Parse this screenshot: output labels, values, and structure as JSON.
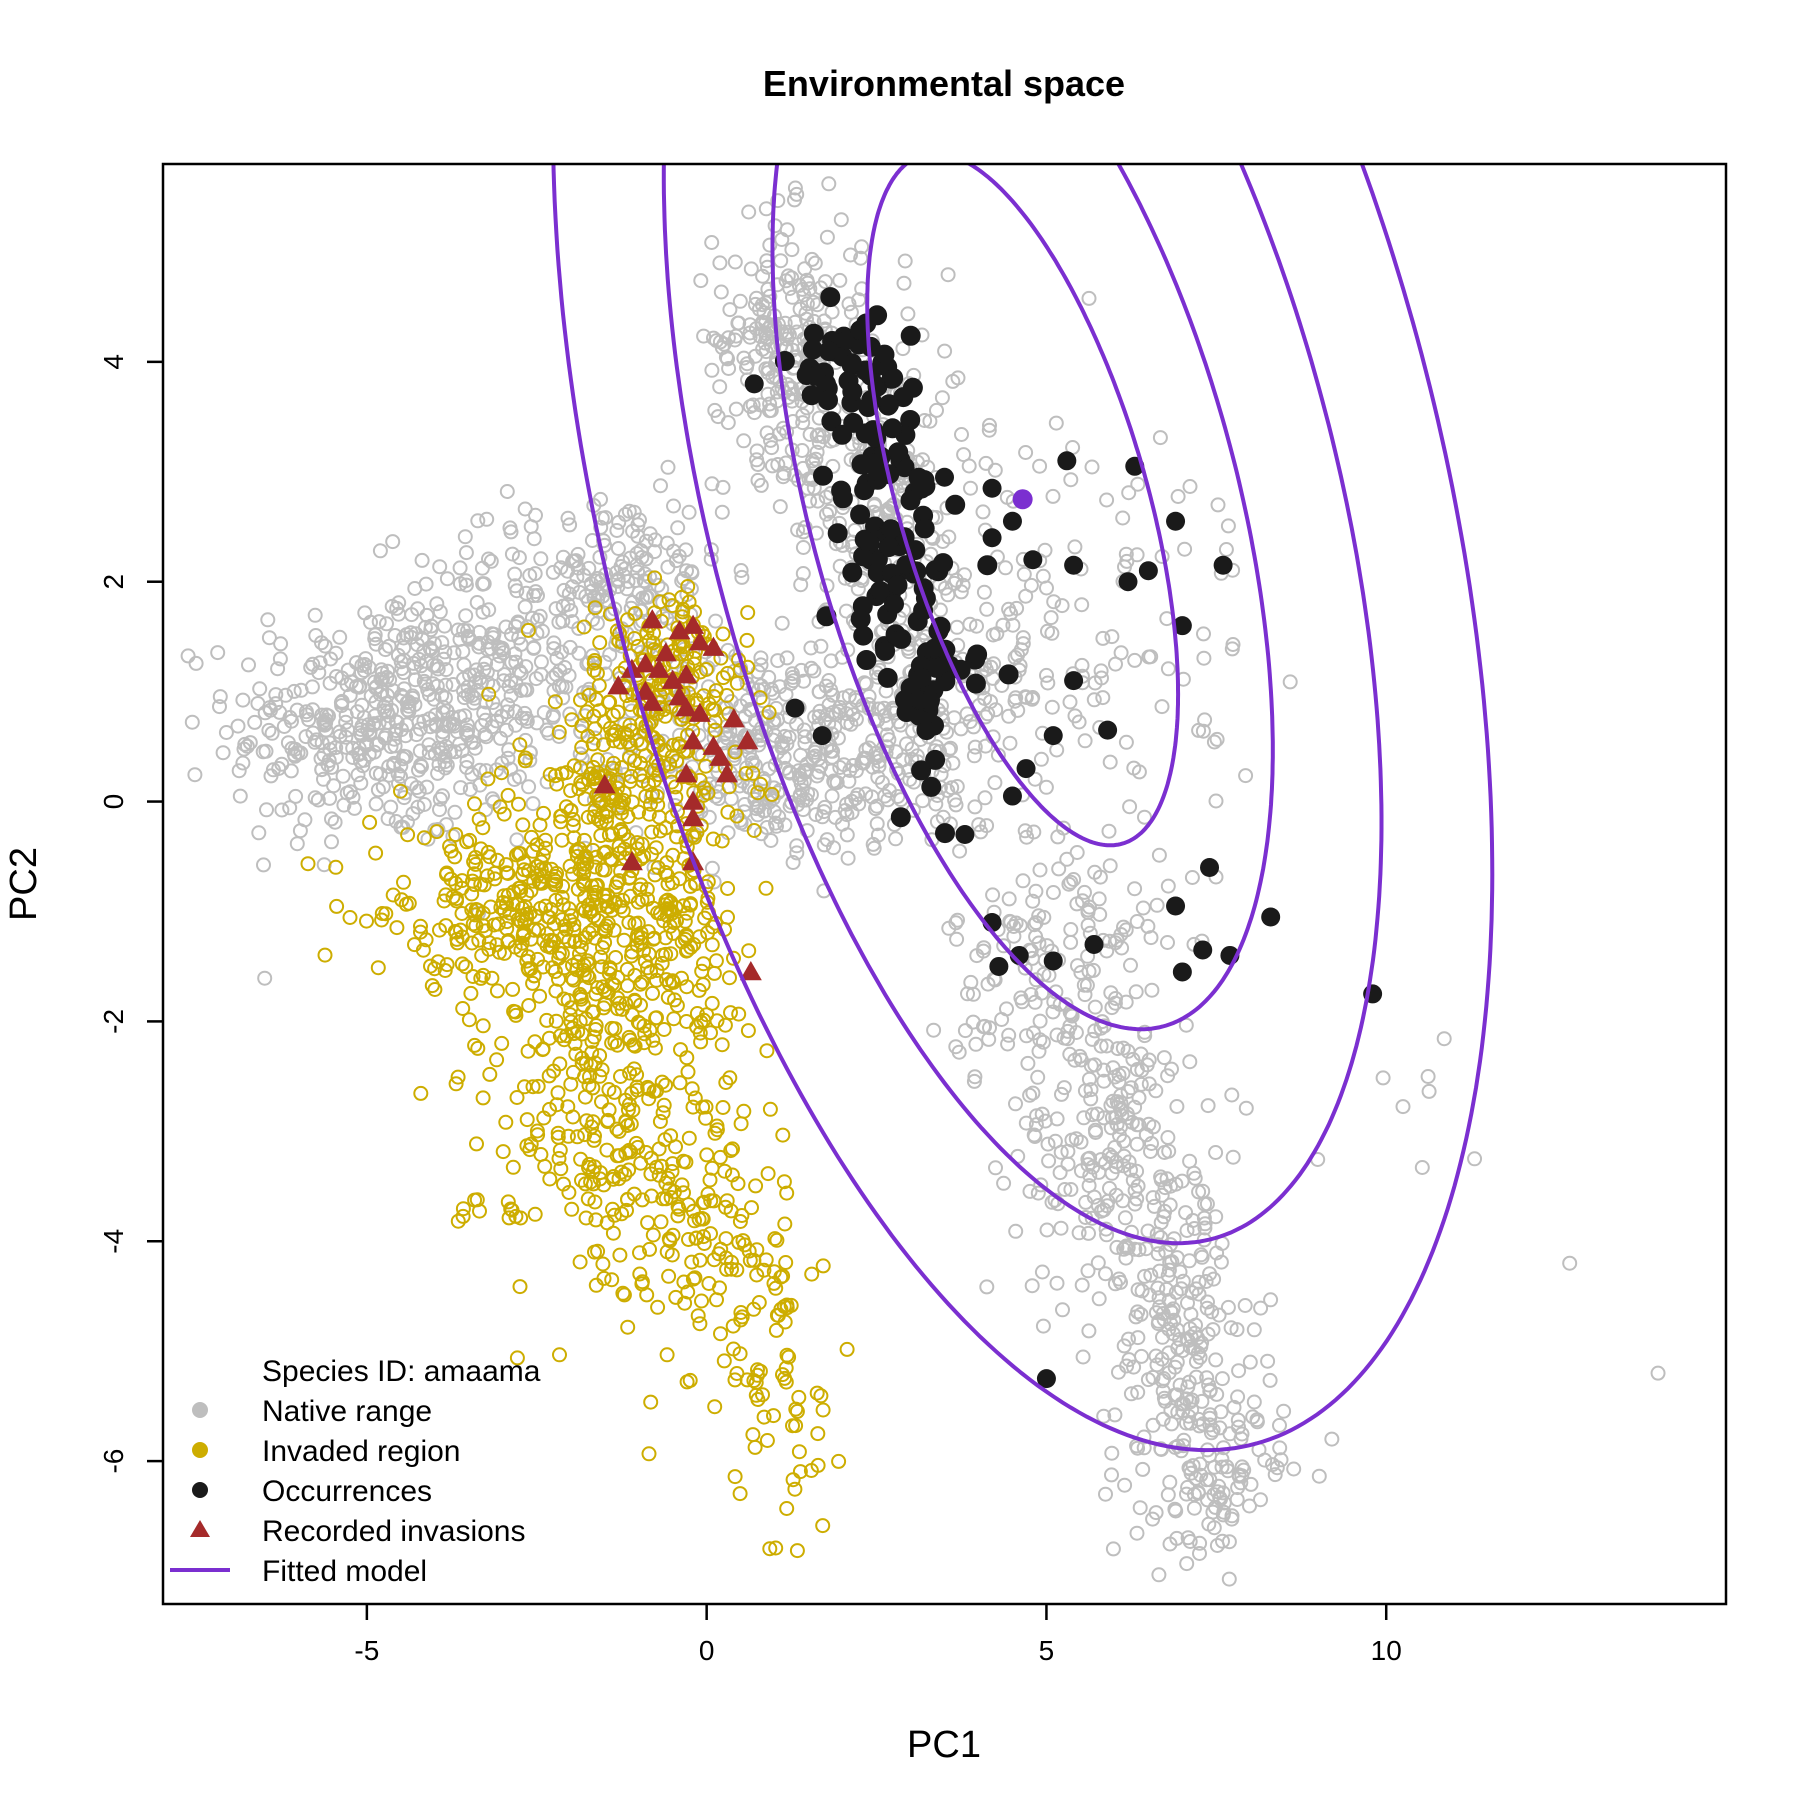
{
  "chart_data": {
    "type": "scatter",
    "title": "Environmental space",
    "xlabel": "PC1",
    "ylabel": "PC2",
    "xlim": [
      -8,
      15
    ],
    "ylim": [
      -7.3,
      5.8
    ],
    "xticks": [
      -5,
      0,
      5,
      10
    ],
    "yticks": [
      -6,
      -4,
      -2,
      0,
      2,
      4
    ],
    "grid": false,
    "legend_position": "bottom-left",
    "legend": {
      "header": "Species ID: amaama",
      "entries": [
        {
          "label": "Native range",
          "marker": "circle",
          "color": "#bebebe"
        },
        {
          "label": "Invaded region",
          "marker": "circle",
          "color": "#cdad00"
        },
        {
          "label": "Occurrences",
          "marker": "circle",
          "color": "#1a1a1a"
        },
        {
          "label": "Recorded invasions",
          "marker": "triangle",
          "color": "#a52a2a"
        },
        {
          "label": "Fitted model",
          "marker": "line",
          "color": "#7b2fd0"
        }
      ]
    },
    "colors": {
      "native": "#bebebe",
      "invaded": "#cdad00",
      "occurrences": "#1a1a1a",
      "invasions": "#a52a2a",
      "model": "#7b2fd0"
    },
    "native_range_clusters": [
      {
        "cx": -4.8,
        "cy": 0.7,
        "sx": 1.1,
        "sy": 0.55,
        "n": 380
      },
      {
        "cx": -2.8,
        "cy": 1.3,
        "sx": 1.1,
        "sy": 0.6,
        "n": 260
      },
      {
        "cx": -1.2,
        "cy": 2.0,
        "sx": 0.7,
        "sy": 0.4,
        "n": 120
      },
      {
        "cx": 0.8,
        "cy": 0.5,
        "sx": 1.0,
        "sy": 0.5,
        "n": 220
      },
      {
        "cx": 2.0,
        "cy": 0.3,
        "sx": 1.2,
        "sy": 0.4,
        "n": 160
      },
      {
        "cx": 1.2,
        "cy": 4.2,
        "sx": 0.55,
        "sy": 0.55,
        "n": 240
      },
      {
        "cx": 2.5,
        "cy": 2.8,
        "sx": 0.7,
        "sy": 0.8,
        "n": 200
      },
      {
        "cx": 3.5,
        "cy": 1.2,
        "sx": 0.9,
        "sy": 0.6,
        "n": 170
      },
      {
        "cx": 5.5,
        "cy": 1.7,
        "sx": 1.4,
        "sy": 1.0,
        "n": 110
      },
      {
        "cx": 5.2,
        "cy": -1.5,
        "sx": 0.8,
        "sy": 0.7,
        "n": 170
      },
      {
        "cx": 6.0,
        "cy": -3.2,
        "sx": 0.7,
        "sy": 0.7,
        "n": 200
      },
      {
        "cx": 7.0,
        "cy": -5.0,
        "sx": 0.55,
        "sy": 0.8,
        "n": 200
      },
      {
        "cx": 7.5,
        "cy": -6.2,
        "sx": 0.5,
        "sy": 0.35,
        "n": 80
      },
      {
        "cx": 10.5,
        "cy": -2.6,
        "sx": 0.4,
        "sy": 0.3,
        "n": 6
      }
    ],
    "native_range_outliers": [
      {
        "x": 12.7,
        "y": -4.2
      },
      {
        "x": 14.0,
        "y": -5.2
      },
      {
        "x": 11.3,
        "y": -3.25
      },
      {
        "x": 8.0,
        "y": -5.1
      },
      {
        "x": 9.2,
        "y": -5.8
      }
    ],
    "invaded_region_clusters": [
      {
        "cx": -1.0,
        "cy": 0.5,
        "sx": 0.8,
        "sy": 0.6,
        "n": 220
      },
      {
        "cx": -1.5,
        "cy": -0.9,
        "sx": 1.0,
        "sy": 0.6,
        "n": 320
      },
      {
        "cx": -3.2,
        "cy": -1.0,
        "sx": 0.9,
        "sy": 0.35,
        "n": 160
      },
      {
        "cx": -1.2,
        "cy": -2.0,
        "sx": 0.9,
        "sy": 0.7,
        "n": 200
      },
      {
        "cx": -1.5,
        "cy": -3.2,
        "sx": 1.0,
        "sy": 0.7,
        "n": 150
      },
      {
        "cx": 0.0,
        "cy": -4.0,
        "sx": 0.6,
        "sy": 0.7,
        "n": 110
      },
      {
        "cx": 1.0,
        "cy": -5.2,
        "sx": 0.35,
        "sy": 0.6,
        "n": 50
      },
      {
        "cx": 1.4,
        "cy": -6.3,
        "sx": 0.3,
        "sy": 0.3,
        "n": 12
      },
      {
        "cx": -0.3,
        "cy": 1.3,
        "sx": 0.5,
        "sy": 0.3,
        "n": 80
      }
    ],
    "occurrence_clusters": [
      {
        "cx": 2.1,
        "cy": 3.9,
        "sx": 0.45,
        "sy": 0.25,
        "n": 40
      },
      {
        "cx": 2.5,
        "cy": 3.0,
        "sx": 0.35,
        "sy": 0.45,
        "n": 40
      },
      {
        "cx": 2.8,
        "cy": 1.9,
        "sx": 0.45,
        "sy": 0.45,
        "n": 50
      },
      {
        "cx": 3.3,
        "cy": 1.0,
        "sx": 0.35,
        "sy": 0.45,
        "n": 30
      }
    ],
    "occurrence_points": [
      {
        "x": 5.3,
        "y": 3.1
      },
      {
        "x": 6.3,
        "y": 3.05
      },
      {
        "x": 4.2,
        "y": 2.85
      },
      {
        "x": 3.5,
        "y": 2.95
      },
      {
        "x": 6.9,
        "y": 2.55
      },
      {
        "x": 4.5,
        "y": 2.55
      },
      {
        "x": 4.2,
        "y": 2.4
      },
      {
        "x": 4.8,
        "y": 2.2
      },
      {
        "x": 5.4,
        "y": 2.15
      },
      {
        "x": 7.6,
        "y": 2.15
      },
      {
        "x": 6.5,
        "y": 2.1
      },
      {
        "x": 6.2,
        "y": 2.0
      },
      {
        "x": 7.0,
        "y": 1.6
      },
      {
        "x": 5.4,
        "y": 1.1
      },
      {
        "x": 5.9,
        "y": 0.65
      },
      {
        "x": 5.1,
        "y": 0.6
      },
      {
        "x": 4.7,
        "y": 0.3
      },
      {
        "x": 4.5,
        "y": 0.05
      },
      {
        "x": 3.8,
        "y": -0.3
      },
      {
        "x": 7.4,
        "y": -0.6
      },
      {
        "x": 6.9,
        "y": -0.95
      },
      {
        "x": 8.3,
        "y": -1.05
      },
      {
        "x": 4.2,
        "y": -1.1
      },
      {
        "x": 5.7,
        "y": -1.3
      },
      {
        "x": 7.3,
        "y": -1.35
      },
      {
        "x": 7.7,
        "y": -1.4
      },
      {
        "x": 4.6,
        "y": -1.4
      },
      {
        "x": 5.1,
        "y": -1.45
      },
      {
        "x": 4.3,
        "y": -1.5
      },
      {
        "x": 7.0,
        "y": -1.55
      },
      {
        "x": 9.8,
        "y": -1.75
      },
      {
        "x": 5.0,
        "y": -5.25
      },
      {
        "x": 1.7,
        "y": 0.6
      },
      {
        "x": 1.3,
        "y": 0.85
      },
      {
        "x": 0.7,
        "y": 3.8
      }
    ],
    "recorded_invasions": [
      {
        "x": -0.8,
        "y": 1.65
      },
      {
        "x": -0.4,
        "y": 1.55
      },
      {
        "x": -0.2,
        "y": 1.6
      },
      {
        "x": -0.1,
        "y": 1.45
      },
      {
        "x": 0.1,
        "y": 1.4
      },
      {
        "x": -0.6,
        "y": 1.35
      },
      {
        "x": -0.9,
        "y": 1.25
      },
      {
        "x": -1.1,
        "y": 1.2
      },
      {
        "x": -0.7,
        "y": 1.2
      },
      {
        "x": -0.5,
        "y": 1.1
      },
      {
        "x": -0.3,
        "y": 1.15
      },
      {
        "x": -1.3,
        "y": 1.05
      },
      {
        "x": -0.9,
        "y": 1.0
      },
      {
        "x": -0.4,
        "y": 0.95
      },
      {
        "x": -0.8,
        "y": 0.9
      },
      {
        "x": -0.3,
        "y": 0.85
      },
      {
        "x": -0.1,
        "y": 0.8
      },
      {
        "x": 0.4,
        "y": 0.75
      },
      {
        "x": -0.2,
        "y": 0.55
      },
      {
        "x": 0.1,
        "y": 0.5
      },
      {
        "x": 0.6,
        "y": 0.55
      },
      {
        "x": 0.2,
        "y": 0.4
      },
      {
        "x": 0.3,
        "y": 0.25
      },
      {
        "x": -0.3,
        "y": 0.25
      },
      {
        "x": -1.5,
        "y": 0.15
      },
      {
        "x": -0.2,
        "y": 0.0
      },
      {
        "x": -0.2,
        "y": -0.15
      },
      {
        "x": -1.1,
        "y": -0.55
      },
      {
        "x": -0.2,
        "y": -0.55
      },
      {
        "x": 0.65,
        "y": -1.55
      }
    ],
    "fitted_model": {
      "center": {
        "x": 4.65,
        "y": 2.75
      },
      "rotation_deg": 30,
      "contours": [
        {
          "a": 1.7,
          "b": 3.5
        },
        {
          "a": 2.95,
          "b": 5.3
        },
        {
          "a": 4.35,
          "b": 7.4
        },
        {
          "a": 5.85,
          "b": 9.4
        }
      ]
    }
  }
}
